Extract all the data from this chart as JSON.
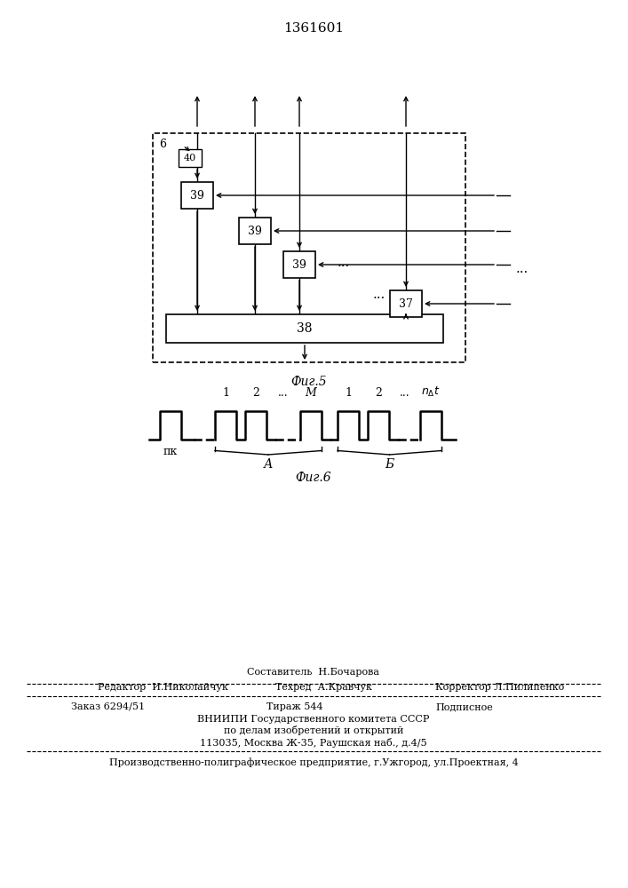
{
  "title": "1361601",
  "fig5_label": "Фиг.5",
  "fig6_label": "Фиг.6",
  "background_color": "#ffffff",
  "line_color": "#000000",
  "footer_lines": [
    "Составитель  Н.Бочарова",
    "Редактор  И.Николайчук",
    "Техред  А.Кравчук",
    "Корректор Л.Пилипенко",
    "Заказ 6294/51",
    "Тираж 544",
    "Подписное",
    "ВНИИПИ Государственного комитета СССР",
    "по делам изобретений и открытий",
    "113035, Москва Ж-35, Раушская наб., д.4/5",
    "Производственно-полиграфическое предприятие, г.Ужгород, ул.Проектная, 4"
  ]
}
